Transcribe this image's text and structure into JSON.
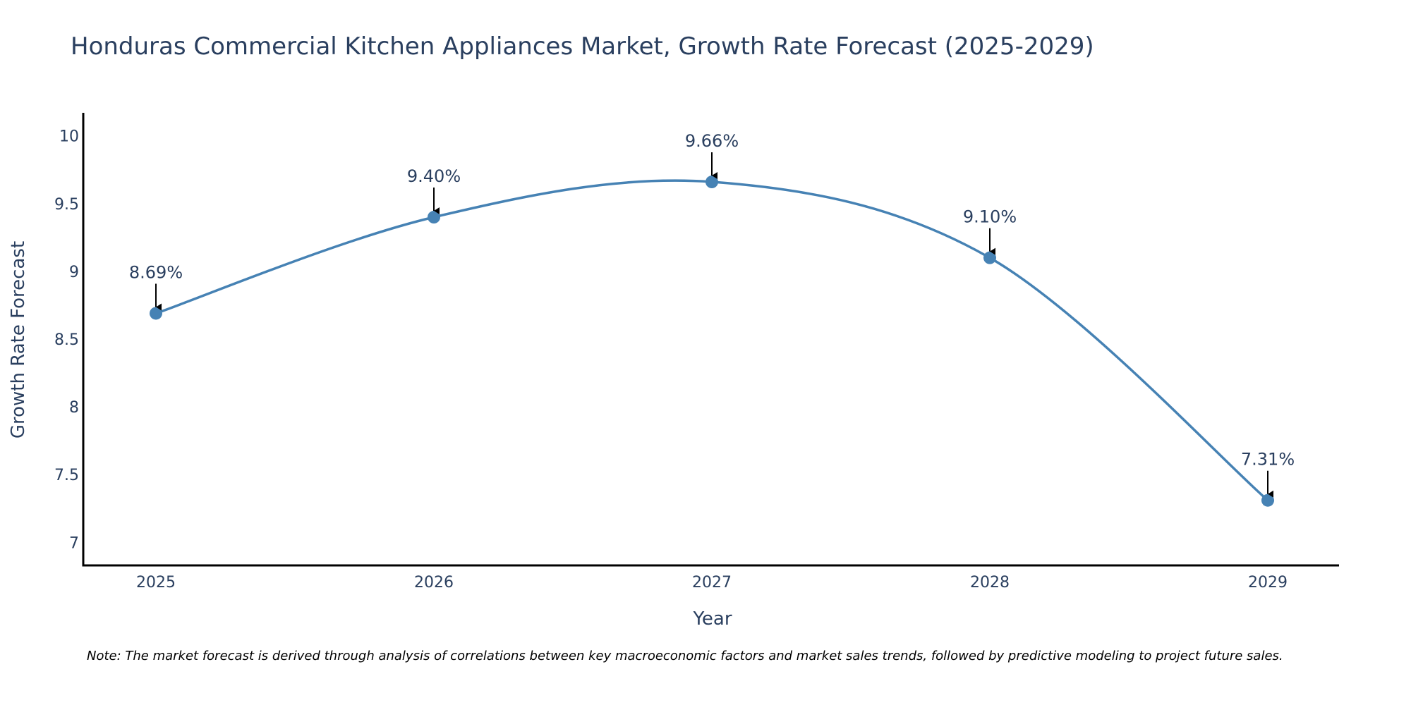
{
  "chart_data": {
    "type": "line",
    "title": "Honduras Commercial Kitchen Appliances Market, Growth Rate Forecast (2025-2029)",
    "xlabel": "Year",
    "ylabel": "Growth Rate Forecast",
    "categories": [
      "2025",
      "2026",
      "2027",
      "2028",
      "2029"
    ],
    "values": [
      8.69,
      9.4,
      9.66,
      9.1,
      7.31
    ],
    "data_labels": [
      "8.69%",
      "9.40%",
      "9.66%",
      "9.10%",
      "7.31%"
    ],
    "yticks": [
      "7",
      "7.5",
      "8",
      "8.5",
      "9",
      "9.5",
      "10"
    ],
    "ylim": [
      6.83,
      10.17
    ],
    "grid": false,
    "line_shape": "spline",
    "line_color": "#4682b4",
    "marker_color": "#4682b4",
    "annotation_arrows": true,
    "note": "Note: The market forecast is derived through analysis of correlations between key macroeconomic factors and market sales trends, followed by predictive modeling to project future sales."
  },
  "colors": {
    "title": "#2a3f5f",
    "axis_line": "#000000",
    "tick_text": "#2a3f5f",
    "arrow": "#000000"
  }
}
